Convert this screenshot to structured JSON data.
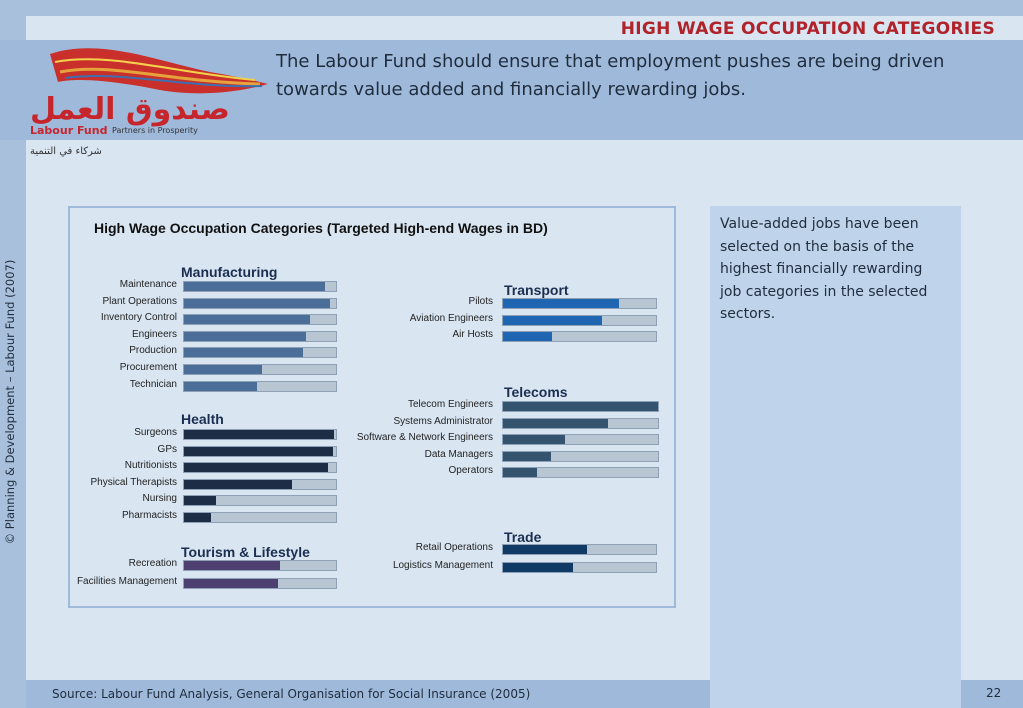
{
  "header": {
    "page_heading": "HIGH WAGE OCCUPATION CATEGORIES",
    "subtitle": "The Labour Fund should ensure that employment pushes are being driven towards value added and financially rewarding jobs."
  },
  "logo": {
    "arabic": "صندوق العمل",
    "arabic_tagline": "شركاء في التنمية",
    "name": "Labour Fund",
    "tagline": "Partners in Prosperity"
  },
  "sidebar_vertical_text": "© Planning & Development – Labour Fund (2007)",
  "side_panel": {
    "text": "Value-added jobs have been selected on the basis of the highest financially rewarding job categories in the selected sectors."
  },
  "footer": {
    "source": "Source: Labour Fund Analysis, General Organisation for Social Insurance (2005)",
    "page_number": "22"
  },
  "chart_data": {
    "type": "bar",
    "title": "High Wage Occupation Categories (Targeted High-end Wages in BD)",
    "groups": [
      {
        "name": "Manufacturing",
        "color": "#4a6e98",
        "items": [
          [
            "Maintenance",
            0.93
          ],
          [
            "Plant Operations",
            0.96
          ],
          [
            "Inventory Control",
            0.83
          ],
          [
            "Engineers",
            0.8
          ],
          [
            "Production",
            0.78
          ],
          [
            "Procurement",
            0.51
          ],
          [
            "Technician",
            0.48
          ]
        ]
      },
      {
        "name": "Health",
        "color": "#1c2d45",
        "items": [
          [
            "Surgeons",
            0.99
          ],
          [
            "GPs",
            0.98
          ],
          [
            "Nutritionists",
            0.95
          ],
          [
            "Physical Therapists",
            0.71
          ],
          [
            "Nursing",
            0.21
          ],
          [
            "Pharmacists",
            0.18
          ]
        ]
      },
      {
        "name": "Tourism & Lifestyle",
        "color": "#4d3f70",
        "items": [
          [
            "Recreation",
            0.63
          ],
          [
            "Facilities Management",
            0.62
          ]
        ]
      },
      {
        "name": "Transport",
        "color": "#1f66b2",
        "items": [
          [
            "Pilots",
            0.76
          ],
          [
            "Aviation Engineers",
            0.65
          ],
          [
            "Air Hosts",
            0.32
          ]
        ]
      },
      {
        "name": "Telecoms",
        "color": "#34536e",
        "items": [
          [
            "Telecom Engineers",
            1.0
          ],
          [
            "Systems Administrator",
            0.68
          ],
          [
            "Software & Network Engineers",
            0.4
          ],
          [
            "Data Managers",
            0.31
          ],
          [
            "Operators",
            0.22
          ]
        ]
      },
      {
        "name": "Trade",
        "color": "#0f3a66",
        "items": [
          [
            "Retail Operations",
            0.55
          ],
          [
            "Logistics Management",
            0.46
          ]
        ]
      }
    ]
  }
}
